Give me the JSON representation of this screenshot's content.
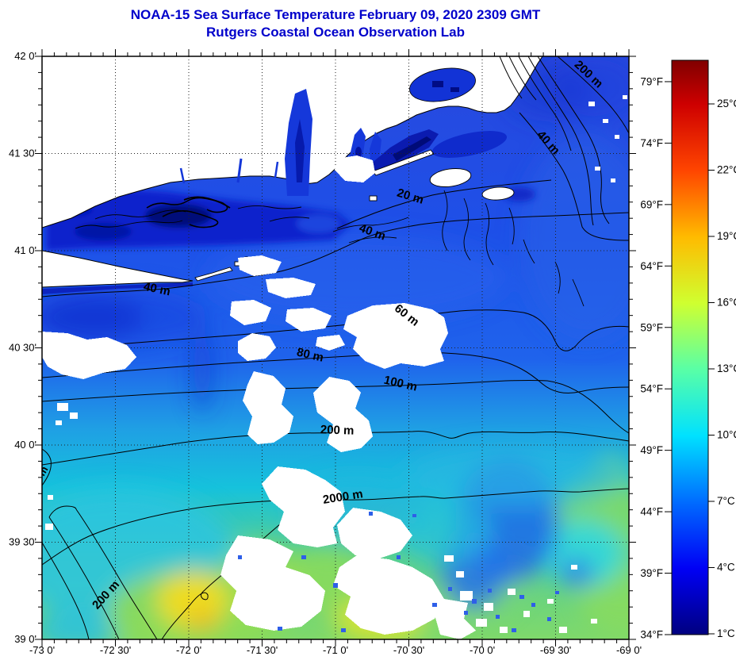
{
  "header": {
    "title_line1": "NOAA-15 Sea Surface Temperature February 09, 2020 2309 GMT",
    "title_line2": "Rutgers Coastal Ocean Observation Lab",
    "title_color": "#0000CB"
  },
  "map": {
    "x_tick_labels": [
      "-73 0'",
      "-72 30'",
      "-72 0'",
      "-71 30'",
      "-71 0'",
      "-70 30'",
      "-70 0'",
      "-69 30'",
      "-69 0'"
    ],
    "y_tick_labels": [
      "42 0'",
      "41 30'",
      "41 0'",
      "40 30'",
      "40 0'",
      "39 30'",
      "39 0'"
    ],
    "contour_labels": [
      {
        "text": "200 m"
      },
      {
        "text": "40 m"
      },
      {
        "text": "20 m"
      },
      {
        "text": "40 m"
      },
      {
        "text": "40 m"
      },
      {
        "text": "60 m"
      },
      {
        "text": "80 m"
      },
      {
        "text": "100 m"
      },
      {
        "text": "200 m"
      },
      {
        "text": "2000 m"
      },
      {
        "text": "200 m"
      },
      {
        "text": "m"
      }
    ]
  },
  "colorbar": {
    "fahrenheit_labels": [
      "79°F",
      "74°F",
      "69°F",
      "64°F",
      "59°F",
      "54°F",
      "49°F",
      "44°F",
      "39°F",
      "34°F"
    ],
    "celsius_labels": [
      "25°C",
      "22°C",
      "19°C",
      "16°C",
      "13°C",
      "10°C",
      "7°C",
      "4°C",
      "1°C"
    ],
    "gradient_stops_top_to_bottom": [
      "#800000",
      "#CE0000",
      "#FF4500",
      "#FFBB00",
      "#CFFF30",
      "#59FFA6",
      "#00E1FF",
      "#006CFF",
      "#0000F5",
      "#000080"
    ]
  }
}
